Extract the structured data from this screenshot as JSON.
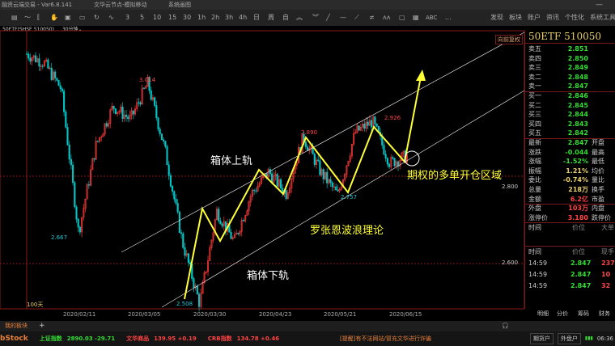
{
  "titlebar": {
    "app": "融资云端交易 - Var6.8.141",
    "node": "文华云节点-模拟移动",
    "view": "系统画图"
  },
  "toolbar": {
    "periods": [
      "3",
      "5",
      "10",
      "15",
      "30",
      "1h",
      "2h",
      "3h",
      "4h",
      "日",
      "周",
      "自"
    ],
    "text_tool": "ABC",
    "more": "...",
    "menu": [
      "发现",
      "板块",
      "账户",
      "资讯",
      "个性化",
      "系统工具"
    ]
  },
  "symbol_bar": {
    "symbol": "50ETF(SHSE 510050)",
    "period": "30分钟"
  },
  "chart": {
    "adjust_label": "向前复权",
    "range_label": "100天",
    "y_ticks": [
      "2.800",
      "2.600"
    ],
    "x_ticks": [
      "2020/02/11",
      "2020/03/05",
      "2020/03/30",
      "2020/04/23",
      "2020/05/21",
      "2020/06/15"
    ],
    "highs": [
      {
        "label": "3.014"
      },
      {
        "label": "2.890"
      },
      {
        "label": "2.926"
      }
    ],
    "lows": [
      {
        "label": "2.667"
      },
      {
        "label": "2.757"
      },
      {
        "label": "2.508"
      }
    ],
    "annotations": {
      "upper": "箱体上轨",
      "lower": "箱体下轨",
      "wave": "罗张恩波浪理论",
      "zone": "期权的多单开仓区域"
    },
    "price_path": [
      3.08,
      3.06,
      3.0,
      2.67,
      2.87,
      2.96,
      2.93,
      3.014,
      2.86,
      2.65,
      2.508,
      2.72,
      2.65,
      2.76,
      2.81,
      2.76,
      2.89,
      2.81,
      2.757,
      2.9,
      2.926,
      2.83,
      2.847
    ],
    "colors": {
      "up": "#ff3b3b",
      "down": "#00c8c8",
      "arrow": "#ffff33",
      "grid": "#8b1a1a"
    }
  },
  "quote": {
    "title": "50ETF 510050",
    "asks": [
      {
        "label": "卖五",
        "price": "2.851"
      },
      {
        "label": "卖四",
        "price": "2.850"
      },
      {
        "label": "卖三",
        "price": "2.849"
      },
      {
        "label": "卖二",
        "price": "2.848"
      },
      {
        "label": "卖一",
        "price": "2.847"
      }
    ],
    "bids": [
      {
        "label": "买一",
        "price": "2.846"
      },
      {
        "label": "买二",
        "price": "2.845"
      },
      {
        "label": "买三",
        "price": "2.844"
      },
      {
        "label": "买四",
        "price": "2.843"
      },
      {
        "label": "买五",
        "price": "2.842"
      }
    ],
    "stats": [
      {
        "label": "最新",
        "value": "2.847",
        "color": "#33dd33",
        "label2": "开盘"
      },
      {
        "label": "涨跌",
        "value": "-0.044",
        "color": "#33dd33",
        "label2": "最高"
      },
      {
        "label": "涨幅",
        "value": "-1.52%",
        "color": "#33dd33",
        "label2": "最低"
      },
      {
        "label": "振幅",
        "value": "1.21%",
        "color": "#e8d06a",
        "label2": "均价"
      },
      {
        "label": "委比",
        "value": "-0.74%",
        "color": "#e8d06a",
        "label2": "量比"
      },
      {
        "label": "总量",
        "value": "218万",
        "color": "#e8d06a",
        "label2": "换手"
      },
      {
        "label": "金额",
        "value": "6.2亿",
        "color": "#ff4444",
        "label2": "市盈"
      },
      {
        "label": "外盘",
        "value": "103万",
        "color": "#ff4444",
        "label2": "内盘"
      },
      {
        "label": "涨停价",
        "value": "3.180",
        "color": "#ff4444",
        "label2": "跌停价"
      }
    ],
    "ticks_header": {
      "time": "时间",
      "price": "价位",
      "vol": "大单"
    },
    "ticks_header2": {
      "time": "时间",
      "price": "价位",
      "vol": "现手"
    },
    "ticks": [
      {
        "time": "14:59",
        "price": "2.847",
        "vol": "237"
      },
      {
        "time": "14:59",
        "price": "2.847",
        "vol": "10"
      },
      {
        "time": "14:59",
        "price": "2.847",
        "vol": "32"
      }
    ],
    "tabs": [
      "明细",
      "分价",
      "筹码",
      "财务"
    ]
  },
  "bottom": {
    "my_sector": "我的板块",
    "add": "+",
    "logo": "bStock",
    "indices": [
      {
        "name": "上证指数",
        "value": "2890.03 -29.71",
        "color": "#33dd33"
      },
      {
        "name": "文华商品",
        "value": "139.95 +0.19",
        "color": "#ff4444"
      },
      {
        "name": "CRB指数",
        "value": "134.78 +0.46",
        "color": "#ff4444"
      }
    ],
    "notice": "[提醒]有不法网站/冒充文华进行诈骗",
    "buttons": [
      "期货户",
      "外盘户"
    ],
    "time": "06:36"
  }
}
